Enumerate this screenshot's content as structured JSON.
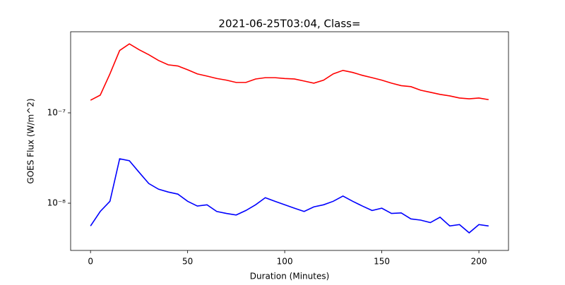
{
  "chart_data": {
    "type": "line",
    "title": "2021-06-25T03:04, Class=",
    "x_label": "Duration (Minutes)",
    "y_label": "GOES Flux (W/m^2)",
    "yscale": "log",
    "x": [
      0,
      5,
      10,
      15,
      20,
      25,
      30,
      35,
      40,
      45,
      50,
      55,
      60,
      65,
      70,
      75,
      80,
      85,
      90,
      95,
      100,
      105,
      110,
      115,
      120,
      125,
      130,
      135,
      140,
      145,
      150,
      155,
      160,
      165,
      170,
      175,
      180,
      185,
      190,
      195,
      200,
      205
    ],
    "series": [
      {
        "color": "#ff0000",
        "values": [
          1.38e-07,
          1.57e-07,
          2.7e-07,
          4.9e-07,
          5.8e-07,
          5e-07,
          4.4e-07,
          3.8e-07,
          3.4e-07,
          3.3e-07,
          3e-07,
          2.7e-07,
          2.55e-07,
          2.4e-07,
          2.3e-07,
          2.17e-07,
          2.17e-07,
          2.37e-07,
          2.45e-07,
          2.45e-07,
          2.4e-07,
          2.37e-07,
          2.25e-07,
          2.13e-07,
          2.3e-07,
          2.7e-07,
          2.95e-07,
          2.8e-07,
          2.6e-07,
          2.45e-07,
          2.3e-07,
          2.13e-07,
          2e-07,
          1.95e-07,
          1.78e-07,
          1.69e-07,
          1.6e-07,
          1.54e-07,
          1.46e-07,
          1.43e-07,
          1.46e-07,
          1.4e-07
        ]
      },
      {
        "color": "#0000ff",
        "values": [
          5.6e-09,
          8.1e-09,
          1.05e-08,
          3.1e-08,
          2.95e-08,
          2.2e-08,
          1.65e-08,
          1.43e-08,
          1.33e-08,
          1.26e-08,
          1.05e-08,
          9.3e-09,
          9.6e-09,
          8.1e-09,
          7.7e-09,
          7.4e-09,
          8.3e-09,
          9.6e-09,
          1.15e-08,
          1.05e-08,
          9.6e-09,
          8.8e-09,
          8.1e-09,
          9.1e-09,
          9.6e-09,
          1.05e-08,
          1.2e-08,
          1.05e-08,
          9.3e-09,
          8.3e-09,
          8.8e-09,
          7.7e-09,
          7.8e-09,
          6.7e-09,
          6.5e-09,
          6.1e-09,
          7e-09,
          5.6e-09,
          5.8e-09,
          4.7e-09,
          5.8e-09,
          5.6e-09
        ]
      }
    ],
    "xlim": [
      -10.25,
      215.25
    ],
    "xticks": [
      0,
      50,
      100,
      150,
      200
    ],
    "ylim": [
      3e-09,
      7.9e-07
    ],
    "yticks": [
      {
        "value": 1e-08,
        "label": "10⁻⁸"
      },
      {
        "value": 1e-07,
        "label": "10⁻⁷"
      }
    ]
  }
}
